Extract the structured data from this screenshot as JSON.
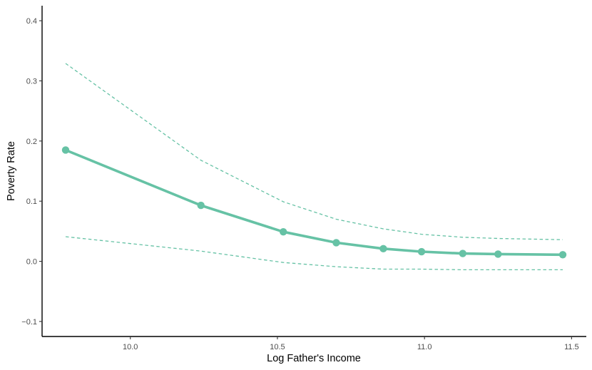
{
  "chart_data": {
    "type": "line",
    "title": "",
    "xlabel": "Log Father's Income",
    "ylabel": "Poverty Rate",
    "xlim": [
      9.7,
      11.55
    ],
    "ylim": [
      -0.125,
      0.425
    ],
    "x_ticks": [
      10.0,
      10.5,
      11.0,
      11.5
    ],
    "x_tick_labels": [
      "10.0",
      "10.5",
      "11.0",
      "11.5"
    ],
    "y_ticks": [
      -0.1,
      0.0,
      0.1,
      0.2,
      0.3,
      0.4
    ],
    "y_tick_labels": [
      "−0.1",
      "0.0",
      "0.1",
      "0.2",
      "0.3",
      "0.4"
    ],
    "grid": false,
    "legend": "none",
    "color": "#66c2a5",
    "series": [
      {
        "role": "estimate",
        "style": "solid-with-points",
        "x": [
          9.78,
          10.24,
          10.52,
          10.7,
          10.86,
          10.99,
          11.13,
          11.25,
          11.47
        ],
        "y": [
          0.185,
          0.093,
          0.049,
          0.031,
          0.021,
          0.016,
          0.013,
          0.012,
          0.011
        ]
      },
      {
        "role": "upper-bound",
        "style": "dashed",
        "x": [
          9.78,
          10.24,
          10.52,
          10.7,
          10.86,
          10.99,
          11.13,
          11.25,
          11.47
        ],
        "y": [
          0.329,
          0.168,
          0.099,
          0.07,
          0.054,
          0.045,
          0.04,
          0.038,
          0.036
        ]
      },
      {
        "role": "lower-bound",
        "style": "dashed",
        "x": [
          9.78,
          10.24,
          10.52,
          10.7,
          10.86,
          10.99,
          11.13,
          11.25,
          11.47
        ],
        "y": [
          0.041,
          0.017,
          -0.002,
          -0.009,
          -0.013,
          -0.013,
          -0.014,
          -0.014,
          -0.014
        ]
      }
    ]
  }
}
